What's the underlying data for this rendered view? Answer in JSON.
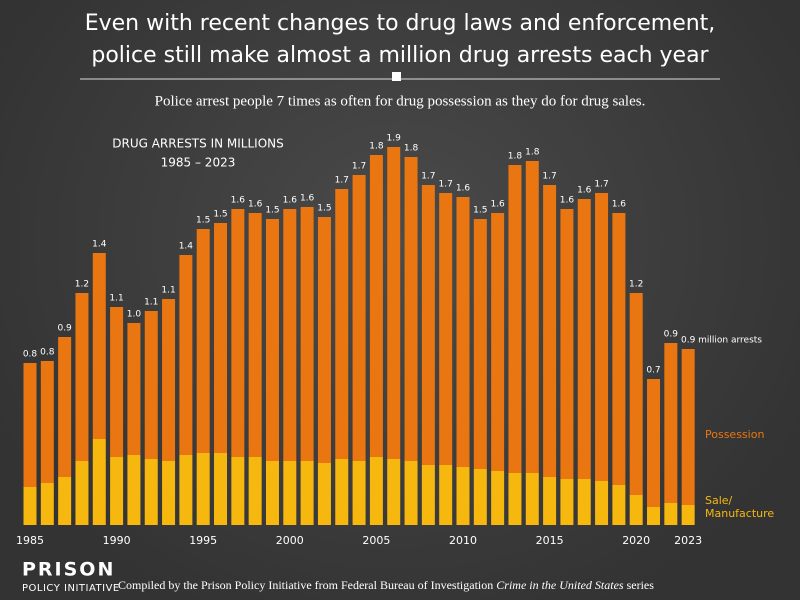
{
  "header": {
    "title": [
      "Even with recent changes to drug laws and enforcement,",
      "police still make almost a million drug arrests each year"
    ],
    "subtitle": "Police arrest people 7 times as often for drug possession as they do for drug sales."
  },
  "chart_data": {
    "type": "bar",
    "stacked": true,
    "title": "DRUG ARRESTS IN MILLIONS",
    "subtitle": "1985 – 2023",
    "categories": [
      "1985",
      null,
      null,
      null,
      null,
      "1990",
      null,
      null,
      null,
      null,
      "1995",
      null,
      null,
      null,
      null,
      "2000",
      null,
      null,
      null,
      null,
      "2005",
      null,
      null,
      null,
      null,
      "2010",
      null,
      null,
      null,
      null,
      "2015",
      null,
      null,
      null,
      null,
      "2020",
      null,
      null,
      "2023"
    ],
    "series": [
      {
        "name": "Sale/ Manufacture",
        "color": "#f6b80f",
        "values": [
          0.19,
          0.21,
          0.24,
          0.32,
          0.43,
          0.34,
          0.35,
          0.33,
          0.32,
          0.35,
          0.36,
          0.36,
          0.34,
          0.34,
          0.32,
          0.32,
          0.32,
          0.31,
          0.33,
          0.32,
          0.34,
          0.33,
          0.32,
          0.3,
          0.3,
          0.29,
          0.28,
          0.27,
          0.26,
          0.26,
          0.24,
          0.23,
          0.23,
          0.22,
          0.2,
          0.15,
          0.09,
          0.11,
          0.1
        ]
      },
      {
        "name": "Possession",
        "color": "#ea7612",
        "values": [
          0.62,
          0.61,
          0.7,
          0.84,
          0.93,
          0.75,
          0.66,
          0.74,
          0.81,
          1.0,
          1.12,
          1.15,
          1.24,
          1.22,
          1.21,
          1.26,
          1.27,
          1.23,
          1.35,
          1.43,
          1.51,
          1.56,
          1.52,
          1.4,
          1.36,
          1.35,
          1.25,
          1.29,
          1.54,
          1.56,
          1.46,
          1.35,
          1.4,
          1.44,
          1.36,
          1.01,
          0.64,
          0.8,
          0.78
        ]
      }
    ],
    "total_labels": [
      "0.8",
      "0.8",
      "0.9",
      "1.2",
      "1.4",
      "1.1",
      "1.0",
      "1.1",
      "1.1",
      "1.4",
      "1.5",
      "1.5",
      "1.6",
      "1.6",
      "1.5",
      "1.6",
      "1.6",
      "1.5",
      "1.7",
      "1.7",
      "1.8",
      "1.9",
      "1.8",
      "1.7",
      "1.7",
      "1.6",
      "1.5",
      "1.6",
      "1.8",
      "1.8",
      "1.7",
      "1.6",
      "1.6",
      "1.7",
      "1.6",
      "1.2",
      "0.7",
      "0.9",
      "0.9"
    ],
    "annotation": "million arrests",
    "ylim": [
      0,
      2.0
    ]
  },
  "footer": {
    "logo": [
      "PRISON",
      "POLICY INITIATIVE"
    ],
    "source": [
      "Compiled by the Prison Policy Initiative from Federal Bureau of Investigation ",
      "Crime in the United States",
      " series"
    ]
  }
}
